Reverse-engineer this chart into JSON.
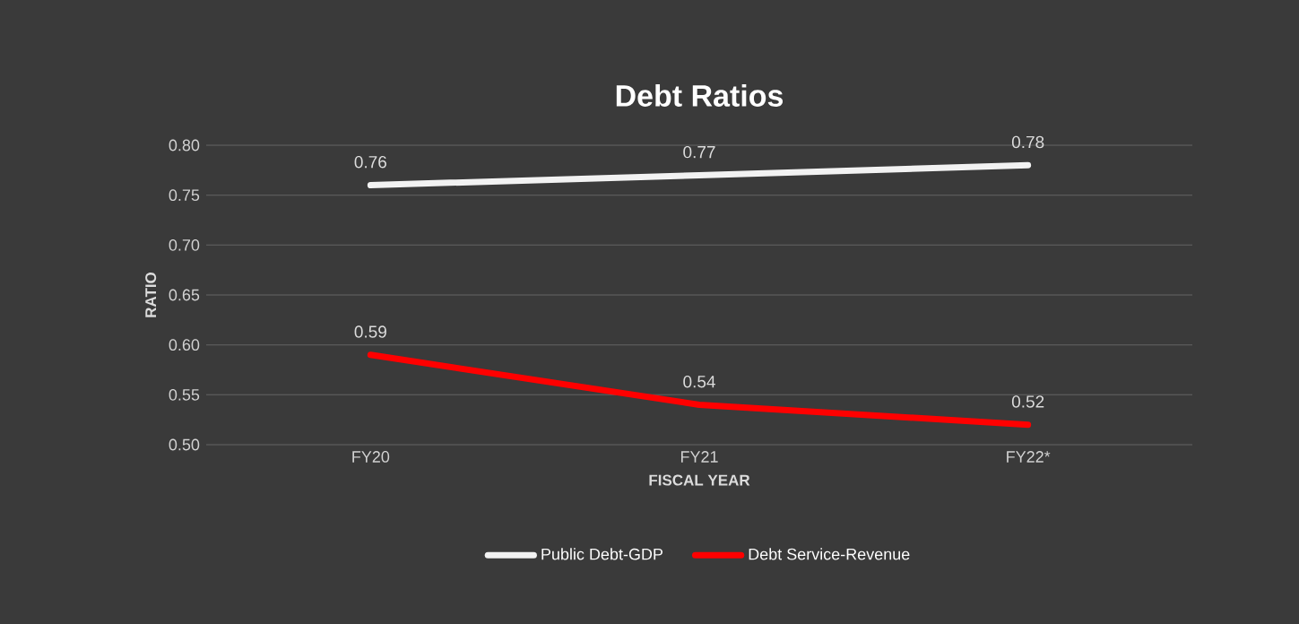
{
  "chart_data": {
    "type": "line",
    "title": "Debt Ratios",
    "xlabel": "FISCAL YEAR",
    "ylabel": "RATIO",
    "categories": [
      "FY20",
      "FY21",
      "FY22*"
    ],
    "series": [
      {
        "name": "Public Debt-GDP",
        "color": "#f2f2f2",
        "values": [
          0.76,
          0.77,
          0.78
        ]
      },
      {
        "name": "Debt Service-Revenue",
        "color": "#ff0000",
        "values": [
          0.59,
          0.54,
          0.52
        ]
      }
    ],
    "ylim": [
      0.5,
      0.8
    ],
    "yticks": [
      {
        "value": 0.5,
        "label": "0.50"
      },
      0.55,
      {
        "value": 0.6,
        "label": "0.60"
      },
      0.65,
      {
        "value": 0.7,
        "label": "0.70"
      },
      0.75,
      {
        "value": 0.8,
        "label": "0.80"
      }
    ],
    "grid": "y",
    "legend": "bottom",
    "data_labels": true,
    "marker": "none",
    "line_style": "solid"
  }
}
